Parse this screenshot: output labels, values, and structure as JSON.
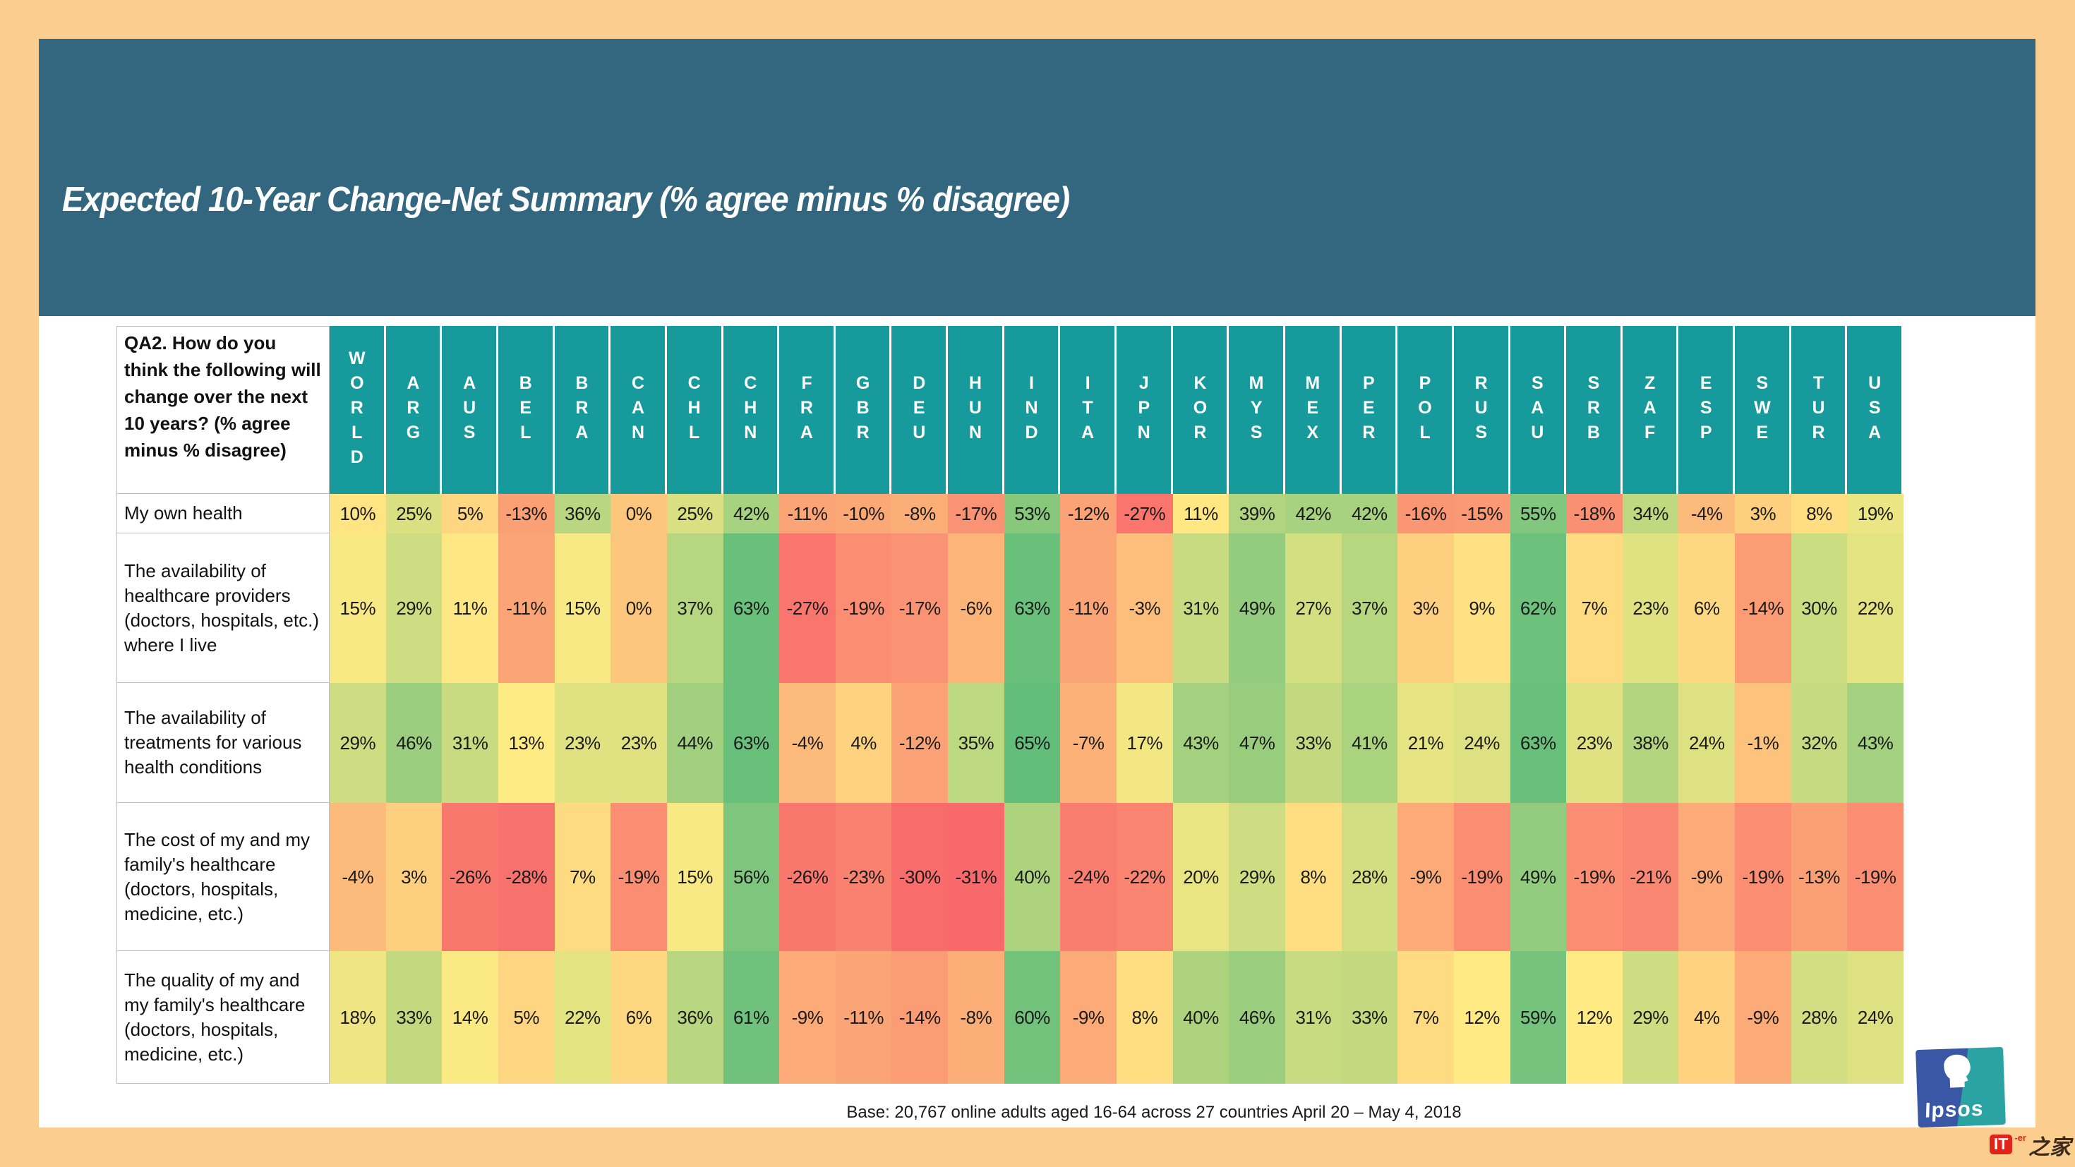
{
  "theme": {
    "page_bg": "#FBCE8F",
    "title_bar_bg": "#32677F",
    "title_text": "#FFFFFF",
    "header_bg": "#179A9B",
    "header_text": "#FFFFFF",
    "cell_text": "#1A1A1A",
    "label_border": "#BFBFBF"
  },
  "chart_data": {
    "type": "heatmap",
    "title": "Expected 10-Year Change-Net Summary (% agree minus % disagree)",
    "question": "QA2. How do you think the following will change over the next 10 years? (% agree minus % disagree)",
    "value_format": "percent",
    "columns": [
      "WORLD",
      "ARG",
      "AUS",
      "BEL",
      "BRA",
      "CAN",
      "CHL",
      "CHN",
      "FRA",
      "GBR",
      "DEU",
      "HUN",
      "IND",
      "ITA",
      "JPN",
      "KOR",
      "MYS",
      "MEX",
      "PER",
      "POL",
      "RUS",
      "SAU",
      "SRB",
      "ZAF",
      "ESP",
      "SWE",
      "TUR",
      "USA"
    ],
    "rows": [
      {
        "label": "My own health",
        "values": [
          10,
          25,
          5,
          -13,
          36,
          0,
          25,
          42,
          -11,
          -10,
          -8,
          -17,
          53,
          -12,
          -27,
          11,
          39,
          42,
          42,
          -16,
          -15,
          55,
          -18,
          34,
          -4,
          3,
          8,
          19
        ]
      },
      {
        "label": "The availability of healthcare providers (doctors, hospitals, etc.) where I live",
        "values": [
          15,
          29,
          11,
          -11,
          15,
          0,
          37,
          63,
          -27,
          -19,
          -17,
          -6,
          63,
          -11,
          -3,
          31,
          49,
          27,
          37,
          3,
          9,
          62,
          7,
          23,
          6,
          -14,
          30,
          22
        ]
      },
      {
        "label": "The availability of treatments for various health conditions",
        "values": [
          29,
          46,
          31,
          13,
          23,
          23,
          44,
          63,
          -4,
          4,
          -12,
          35,
          65,
          -7,
          17,
          43,
          47,
          33,
          41,
          21,
          24,
          63,
          23,
          38,
          24,
          -1,
          32,
          43
        ]
      },
      {
        "label": "The cost of my and my family's healthcare (doctors, hospitals, medicine, etc.)",
        "values": [
          -4,
          3,
          -26,
          -28,
          7,
          -19,
          15,
          56,
          -26,
          -23,
          -30,
          -31,
          40,
          -24,
          -22,
          20,
          29,
          8,
          28,
          -9,
          -19,
          49,
          -19,
          -21,
          -9,
          -19,
          -13,
          -19
        ]
      },
      {
        "label": "The quality of my and my family's healthcare (doctors, hospitals, medicine, etc.)",
        "values": [
          18,
          33,
          14,
          5,
          22,
          6,
          36,
          61,
          -9,
          -11,
          -14,
          -8,
          60,
          -9,
          8,
          40,
          46,
          31,
          33,
          7,
          12,
          59,
          12,
          29,
          4,
          -9,
          28,
          24
        ]
      }
    ],
    "color_scale": {
      "type": "3-color",
      "min": -31,
      "midpoint": 12.5,
      "max": 65,
      "min_color": "#F8696B",
      "mid_color": "#FFEB84",
      "max_color": "#63BE7B"
    }
  },
  "footer": {
    "base_text": "Base: 20,767 online adults aged 16-64 across 27 countries  April 20 – May 4, 2018"
  },
  "logo": {
    "text": "Ipsos"
  },
  "watermark": {
    "prefix": "IT",
    "superscript": "-er",
    "text": "之家"
  }
}
